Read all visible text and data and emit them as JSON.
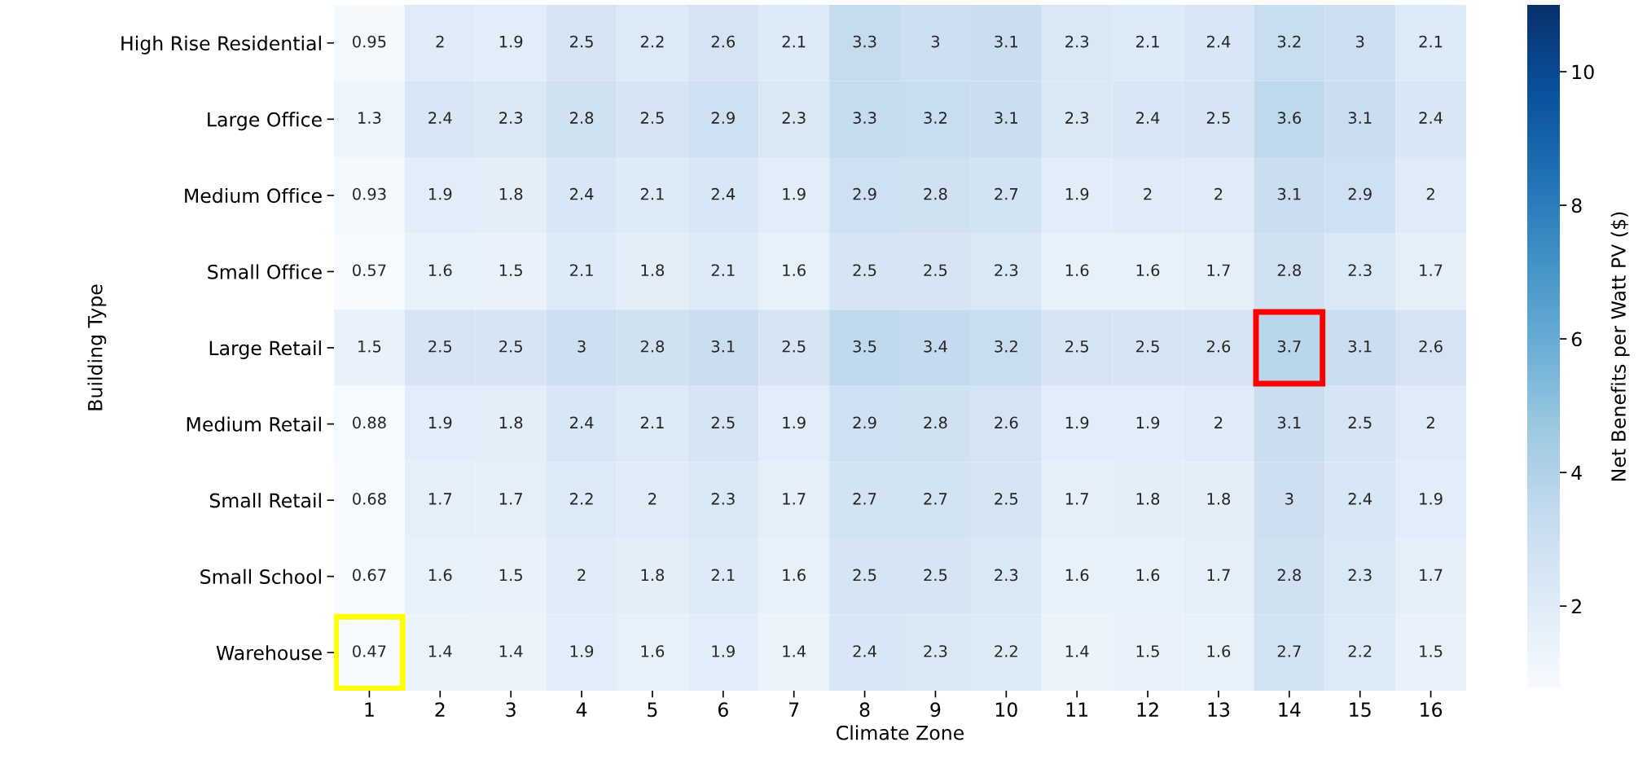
{
  "chart_data": {
    "type": "heatmap",
    "xlabel": "Climate Zone",
    "ylabel": "Building Type",
    "clabel": "Net Benefits per Watt PV ($)",
    "categories": [
      "1",
      "2",
      "3",
      "4",
      "5",
      "6",
      "7",
      "8",
      "9",
      "10",
      "11",
      "12",
      "13",
      "14",
      "15",
      "16"
    ],
    "y_categories": [
      "High Rise Residential",
      "Large Office",
      "Medium Office",
      "Small Office",
      "Large Retail",
      "Medium Retail",
      "Small Retail",
      "Small School",
      "Warehouse"
    ],
    "cells": [
      [
        0.95,
        2,
        1.9,
        2.5,
        2.2,
        2.6,
        2.1,
        3.3,
        3,
        3.1,
        2.3,
        2.1,
        2.4,
        3.2,
        3,
        2.1
      ],
      [
        1.3,
        2.4,
        2.3,
        2.8,
        2.5,
        2.9,
        2.3,
        3.3,
        3.2,
        3.1,
        2.3,
        2.4,
        2.5,
        3.6,
        3.1,
        2.4
      ],
      [
        0.93,
        1.9,
        1.8,
        2.4,
        2.1,
        2.4,
        1.9,
        2.9,
        2.8,
        2.7,
        1.9,
        2,
        2,
        3.1,
        2.9,
        2
      ],
      [
        0.57,
        1.6,
        1.5,
        2.1,
        1.8,
        2.1,
        1.6,
        2.5,
        2.5,
        2.3,
        1.6,
        1.6,
        1.7,
        2.8,
        2.3,
        1.7
      ],
      [
        1.5,
        2.5,
        2.5,
        3,
        2.8,
        3.1,
        2.5,
        3.5,
        3.4,
        3.2,
        2.5,
        2.5,
        2.6,
        3.7,
        3.1,
        2.6
      ],
      [
        0.88,
        1.9,
        1.8,
        2.4,
        2.1,
        2.5,
        1.9,
        2.9,
        2.8,
        2.6,
        1.9,
        1.9,
        2,
        3.1,
        2.5,
        2
      ],
      [
        0.68,
        1.7,
        1.7,
        2.2,
        2,
        2.3,
        1.7,
        2.7,
        2.7,
        2.5,
        1.7,
        1.8,
        1.8,
        3,
        2.4,
        1.9
      ],
      [
        0.67,
        1.6,
        1.5,
        2,
        1.8,
        2.1,
        1.6,
        2.5,
        2.5,
        2.3,
        1.6,
        1.6,
        1.7,
        2.8,
        2.3,
        1.7
      ],
      [
        0.47,
        1.4,
        1.4,
        1.9,
        1.6,
        1.9,
        1.4,
        2.4,
        2.3,
        2.2,
        1.4,
        1.5,
        1.6,
        2.7,
        2.2,
        1.5
      ]
    ],
    "clim": [
      0.77,
      11.0
    ],
    "cticks": [
      2,
      4,
      6,
      8,
      10
    ],
    "data_labels": true
  }
}
